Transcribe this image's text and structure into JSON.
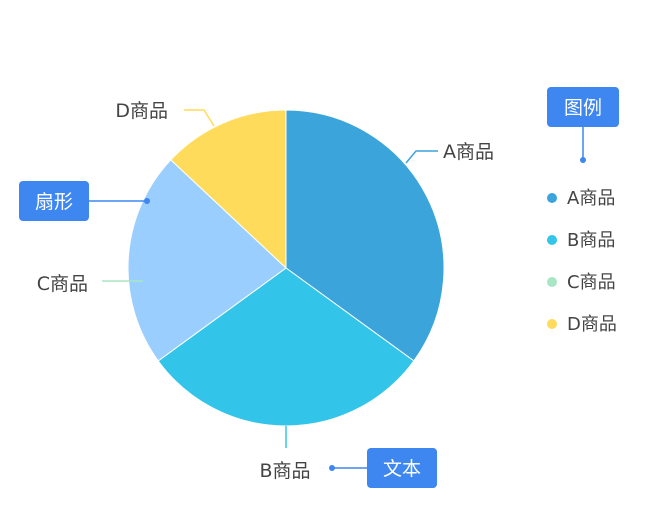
{
  "chart_data": {
    "type": "pie",
    "title": "",
    "categories": [
      "A商品",
      "B商品",
      "C商品",
      "D商品"
    ],
    "values": [
      35,
      30,
      22,
      13
    ],
    "colors": [
      "#3AA4DB",
      "#32C5E9",
      "#9ACEFF",
      "#FFDB5C"
    ],
    "legend": {
      "placement": "right",
      "items": [
        "A商品",
        "B商品",
        "C商品",
        "D商品"
      ],
      "marker_colors": [
        "#3AA4DB",
        "#32C5E9",
        "#A8E6C4",
        "#FFDB5C"
      ]
    },
    "start_angle": "12 o'clock",
    "direction": "clockwise"
  },
  "annotations": {
    "legend_callout": "图例",
    "slice_callout": "扇形",
    "text_callout": "文本"
  },
  "colors": {
    "callout_fill": "#3E86F0",
    "label_text": "#444444",
    "slice_border": "#ffffff"
  }
}
